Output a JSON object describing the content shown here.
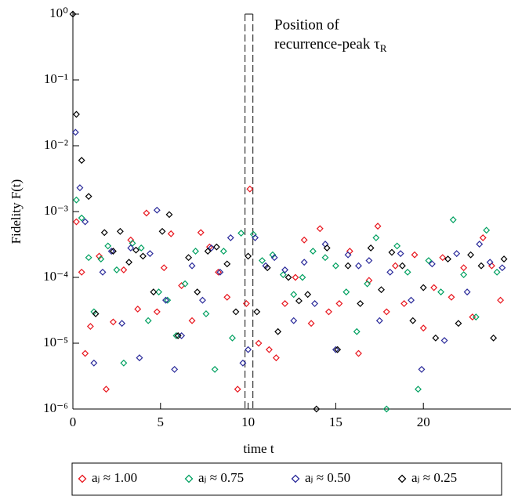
{
  "chart_data": {
    "type": "scatter",
    "xlabel": "time t",
    "ylabel": "Fidelity F(t)",
    "annotation": {
      "lines": [
        "Position of",
        "recurrence-peak τ"
      ],
      "subscript": "R"
    },
    "marker_lines": [
      9.82,
      10.27
    ],
    "xlim": [
      0,
      25
    ],
    "ylim": [
      1e-06,
      1
    ],
    "log_y": true,
    "xticks": [
      0,
      5,
      10,
      15,
      20
    ],
    "yticks": [
      {
        "value": 1,
        "label": "10⁰"
      },
      {
        "value": 0.1,
        "label": "10⁻¹"
      },
      {
        "value": 0.01,
        "label": "10⁻²"
      },
      {
        "value": 0.001,
        "label": "10⁻³"
      },
      {
        "value": 0.0001,
        "label": "10⁻⁴"
      },
      {
        "value": 1e-05,
        "label": "10⁻⁵"
      },
      {
        "value": 1e-06,
        "label": "10⁻⁶"
      }
    ],
    "legend": "bottom",
    "series": [
      {
        "name": "aⱼ ≈ 1.00",
        "color": "#e8141c",
        "x": [
          0.2,
          0.5,
          0.7,
          1.0,
          1.5,
          1.9,
          2.3,
          2.9,
          3.3,
          3.7,
          4.2,
          4.8,
          5.2,
          5.6,
          6.2,
          6.8,
          7.3,
          7.8,
          8.3,
          8.8,
          9.4,
          9.9,
          10.1,
          10.6,
          11.2,
          11.6,
          12.1,
          12.7,
          13.2,
          13.6,
          14.1,
          14.6,
          15.2,
          15.8,
          16.3,
          16.9,
          17.4,
          17.9,
          18.4,
          18.9,
          19.5,
          20.0,
          20.6,
          21.1,
          21.6,
          22.3,
          22.8,
          23.4,
          23.9,
          24.4
        ],
        "values": [
          0.0007,
          0.00012,
          7e-06,
          1.8e-05,
          0.00021,
          2e-06,
          2.1e-05,
          0.00013,
          0.00037,
          3.3e-05,
          0.00095,
          3e-05,
          0.00014,
          0.00046,
          7.5e-05,
          2.2e-05,
          0.00048,
          0.00029,
          0.00012,
          5e-05,
          2e-06,
          4e-05,
          0.0022,
          1e-05,
          8e-06,
          6e-06,
          4e-05,
          0.0001,
          0.00037,
          2e-05,
          0.00055,
          3e-05,
          4e-05,
          0.00025,
          7e-06,
          9e-05,
          0.0006,
          3e-05,
          0.00015,
          4e-05,
          0.00022,
          1.7e-05,
          7e-05,
          0.0002,
          5e-05,
          0.00014,
          2.5e-05,
          0.0004,
          0.00015,
          4.5e-05
        ]
      },
      {
        "name": "aⱼ ≈ 0.75",
        "color": "#00a060",
        "x": [
          0.2,
          0.5,
          0.9,
          1.2,
          1.6,
          2.0,
          2.5,
          2.9,
          3.4,
          3.9,
          4.3,
          4.9,
          5.4,
          5.9,
          6.4,
          7.0,
          7.6,
          8.1,
          8.6,
          9.1,
          9.6,
          10.3,
          10.8,
          11.4,
          12.0,
          12.6,
          13.1,
          13.7,
          14.4,
          15.0,
          15.6,
          16.2,
          16.8,
          17.3,
          17.9,
          18.5,
          19.1,
          19.7,
          20.3,
          21.0,
          21.7,
          22.3,
          23.0,
          23.6,
          24.2
        ],
        "values": [
          0.0015,
          0.0008,
          0.0002,
          3e-05,
          0.00019,
          0.0003,
          0.00013,
          5e-06,
          0.00033,
          0.00028,
          2.2e-05,
          6e-05,
          4.5e-05,
          1.3e-05,
          8e-05,
          0.00025,
          2.8e-05,
          4e-06,
          0.00025,
          1.2e-05,
          0.00047,
          0.00045,
          0.00018,
          0.00022,
          0.00011,
          5.5e-05,
          0.0001,
          0.00025,
          0.0002,
          0.00015,
          6e-05,
          1.5e-05,
          8e-05,
          0.0004,
          1e-06,
          0.0003,
          0.00012,
          2e-06,
          0.00018,
          6e-05,
          0.00075,
          0.00011,
          2.5e-05,
          0.00052,
          0.00012
        ]
      },
      {
        "name": "aⱼ ≈ 0.50",
        "color": "#2a2a9a",
        "x": [
          0.15,
          0.4,
          0.7,
          1.2,
          1.7,
          2.2,
          2.8,
          3.3,
          3.8,
          4.4,
          4.8,
          5.3,
          5.8,
          6.2,
          6.8,
          7.4,
          7.9,
          8.4,
          9.0,
          9.7,
          10.0,
          10.4,
          11.0,
          11.5,
          12.1,
          12.6,
          13.2,
          13.8,
          14.4,
          15.0,
          15.7,
          16.3,
          16.9,
          17.5,
          18.1,
          18.7,
          19.3,
          19.9,
          20.5,
          21.2,
          21.9,
          22.5,
          23.2,
          23.8,
          24.5
        ],
        "values": [
          0.016,
          0.0023,
          0.0007,
          5e-06,
          0.00012,
          0.00025,
          2e-05,
          0.00028,
          6e-06,
          0.00023,
          0.00105,
          4.5e-05,
          4e-06,
          1.3e-05,
          0.00015,
          4.5e-05,
          0.00028,
          0.00012,
          0.0004,
          5e-06,
          8e-06,
          0.0004,
          0.00015,
          0.0002,
          0.00013,
          2.2e-05,
          0.00017,
          4e-05,
          0.00032,
          8e-06,
          0.00022,
          0.00015,
          0.00018,
          2.2e-05,
          0.00012,
          0.00023,
          4.5e-05,
          4e-06,
          0.00016,
          1.1e-05,
          0.00023,
          6e-05,
          0.00032,
          0.00017,
          0.00014
        ]
      },
      {
        "name": "aⱼ ≈ 0.25",
        "color": "#000000",
        "x": [
          0,
          0.2,
          0.5,
          0.9,
          1.3,
          1.8,
          2.3,
          2.7,
          3.2,
          3.6,
          4.0,
          4.6,
          5.1,
          5.5,
          6.0,
          6.6,
          7.1,
          7.7,
          8.2,
          8.8,
          9.3,
          10.0,
          10.5,
          11.1,
          11.7,
          12.3,
          12.9,
          13.4,
          13.9,
          14.5,
          15.1,
          15.7,
          16.4,
          17.0,
          17.6,
          18.2,
          18.8,
          19.4,
          20.0,
          20.7,
          21.4,
          22.0,
          22.7,
          23.3,
          24.0,
          24.6
        ],
        "values": [
          1,
          0.03,
          0.006,
          0.0017,
          2.8e-05,
          0.00048,
          0.00025,
          0.0005,
          0.00017,
          0.00026,
          0.00021,
          6e-05,
          0.0005,
          0.0009,
          1.3e-05,
          0.0002,
          6e-05,
          0.00025,
          0.00029,
          0.00016,
          3e-05,
          0.00021,
          3e-05,
          0.00014,
          1.5e-05,
          0.0001,
          4.4e-05,
          5.5e-05,
          1e-06,
          0.00028,
          8e-06,
          0.00015,
          4e-05,
          0.00028,
          6.5e-05,
          0.00024,
          0.00015,
          2.2e-05,
          7e-05,
          1.2e-05,
          0.00019,
          2e-05,
          0.00022,
          0.00015,
          1.2e-05,
          0.00019
        ]
      }
    ]
  }
}
